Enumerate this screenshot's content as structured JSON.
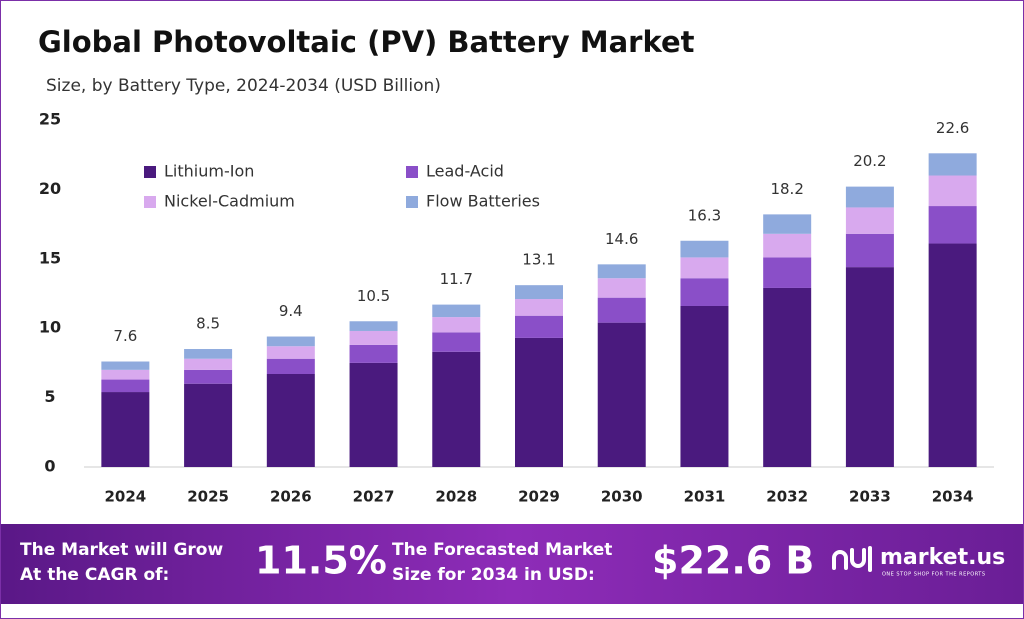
{
  "chart_data": {
    "type": "stacked-bar",
    "title": "Global Photovoltaic (PV) Battery Market",
    "subtitle": "Size, by Battery Type, 2024-2034 (USD Billion)",
    "categories": [
      "2024",
      "2025",
      "2026",
      "2027",
      "2028",
      "2029",
      "2030",
      "2031",
      "2032",
      "2033",
      "2034"
    ],
    "series": [
      {
        "name": "Lithium-Ion",
        "color": "#4a1a7e",
        "values": [
          5.4,
          6.0,
          6.7,
          7.5,
          8.3,
          9.3,
          10.4,
          11.6,
          12.9,
          14.4,
          16.1
        ]
      },
      {
        "name": "Lead-Acid",
        "color": "#8a4fc8",
        "values": [
          0.9,
          1.0,
          1.1,
          1.3,
          1.4,
          1.6,
          1.8,
          2.0,
          2.2,
          2.4,
          2.7
        ]
      },
      {
        "name": "Nickel-Cadmium",
        "color": "#d8a9ee",
        "values": [
          0.7,
          0.8,
          0.9,
          1.0,
          1.1,
          1.2,
          1.4,
          1.5,
          1.7,
          1.9,
          2.2
        ]
      },
      {
        "name": "Flow Batteries",
        "color": "#8faadd",
        "values": [
          0.6,
          0.7,
          0.7,
          0.7,
          0.9,
          1.0,
          1.0,
          1.2,
          1.4,
          1.5,
          1.6
        ]
      }
    ],
    "totals": [
      7.6,
      8.5,
      9.4,
      10.5,
      11.7,
      13.1,
      14.6,
      16.3,
      18.2,
      20.2,
      22.6
    ],
    "ylim": [
      0,
      25
    ],
    "yticks": [
      0,
      5,
      10,
      15,
      20,
      25
    ],
    "grid": false
  },
  "footer": {
    "cagr_text": [
      "The Market will Grow",
      "At the CAGR of:"
    ],
    "cagr_value": "11.5%",
    "forecast_text": [
      "The Forecasted Market",
      "Size for 2034 in USD:"
    ],
    "forecast_value": "$22.6 B",
    "brand": "market.us",
    "tagline": "ONE STOP SHOP FOR THE REPORTS"
  }
}
